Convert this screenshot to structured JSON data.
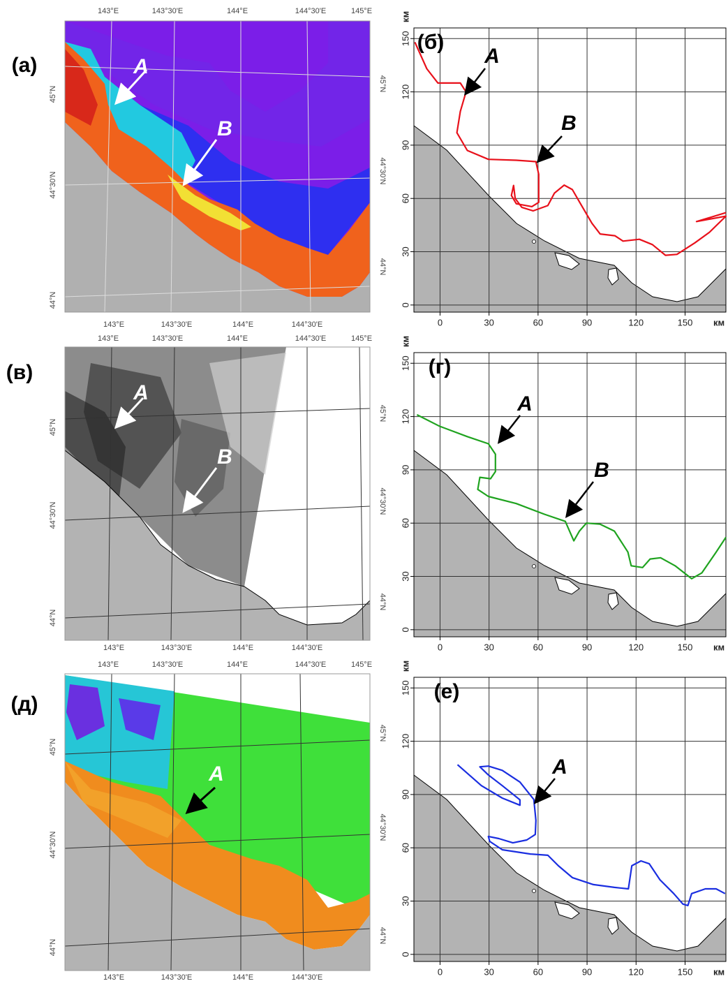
{
  "maps": [
    {
      "label": "(а)",
      "top_lon_labels": [
        "143°E",
        "143°30'E",
        "144°E",
        "144°30'E",
        "145°E"
      ],
      "bottom_lon_labels": [
        "143°E",
        "143°30'E",
        "144°E",
        "144°30'E"
      ],
      "right_lat_labels": [
        "45°N",
        "44°30'N",
        "44°N"
      ],
      "left_lat_labels": [
        "45°N",
        "44°30'N",
        "44°N"
      ],
      "annotations": [
        "A",
        "B"
      ]
    },
    {
      "label": "(в)",
      "top_lon_labels": [
        "143°E",
        "143°30'E",
        "144°E",
        "144°30'E",
        "145°E"
      ],
      "bottom_lon_labels": [
        "143°E",
        "143°30'E",
        "144°E",
        "144°30'E"
      ],
      "right_lat_labels": [
        "45°N",
        "44°30'N",
        "44°N"
      ],
      "left_lat_labels": [
        "45°N",
        "44°30'N",
        "44°N"
      ],
      "annotations": [
        "A",
        "B"
      ]
    },
    {
      "label": "(д)",
      "top_lon_labels": [
        "143°E",
        "143°30'E",
        "144°E",
        "144°30'E",
        "145°E"
      ],
      "bottom_lon_labels": [
        "143°E",
        "143°30'E",
        "144°E",
        "144°30'E"
      ],
      "right_lat_labels": [
        "45°N",
        "44°30'N",
        "44°N"
      ],
      "left_lat_labels": [
        "45°N",
        "44°30'N",
        "44°N"
      ],
      "annotations": [
        "A"
      ]
    }
  ],
  "chart_data": [
    {
      "type": "line",
      "title": "(б)",
      "x_label": "км",
      "y_label": "км",
      "xlim": [
        -16,
        175
      ],
      "ylim": [
        -4,
        156
      ],
      "xticks": [
        0,
        30,
        60,
        90,
        120,
        150
      ],
      "yticks": [
        0,
        30,
        60,
        90,
        120,
        150
      ],
      "grid": true,
      "x": [
        -15.4,
        -8.1,
        -1.3,
        12.4,
        15.9,
        12.4,
        10.3,
        16.7,
        29.6,
        46.7,
        58.7,
        60.4,
        60.4,
        56.2,
        46.7,
        43.7,
        45,
        46,
        50,
        57,
        66,
        70,
        76,
        81,
        86,
        93,
        98,
        107,
        112,
        122,
        130,
        138,
        145,
        156,
        165,
        175,
        157,
        175
      ],
      "series": [
        {
          "color": "#e8111b",
          "values": [
            148,
            133,
            125,
            125,
            120,
            109,
            97,
            87,
            82,
            81.5,
            80.7,
            73.6,
            57.8,
            55.4,
            57,
            61.7,
            67.3,
            60,
            55,
            53,
            56,
            63,
            67.5,
            65,
            57,
            46,
            40,
            39,
            36,
            37,
            34,
            28,
            28.5,
            35,
            41,
            50,
            47,
            52
          ]
        }
      ],
      "annotations": [
        "A",
        "B"
      ]
    },
    {
      "type": "line",
      "title": "(г)",
      "x_label": "км",
      "y_label": "км",
      "xlim": [
        -16,
        175
      ],
      "ylim": [
        -4,
        156
      ],
      "xticks": [
        0,
        30,
        60,
        90,
        120,
        150
      ],
      "yticks": [
        0,
        30,
        60,
        90,
        120,
        150
      ],
      "grid": true,
      "x": [
        -14.1,
        -0.4,
        16.7,
        29.6,
        33.9,
        33.9,
        30.9,
        24.4,
        23.1,
        29.6,
        46.7,
        63.9,
        76.7,
        81.9,
        85.3,
        89.6,
        98,
        106.7,
        115,
        117,
        124,
        128.6,
        135,
        143.9,
        154,
        160.3,
        169,
        175
      ],
      "series": [
        {
          "color": "#1fa31f",
          "values": [
            121,
            114.6,
            108.7,
            104.7,
            98.8,
            89,
            85,
            85.8,
            79,
            75,
            71,
            65,
            61,
            50,
            55.5,
            60,
            59.4,
            55.5,
            43.7,
            36,
            35,
            39.8,
            40.5,
            36,
            28.7,
            32,
            43.7,
            52
          ]
        }
      ],
      "annotations": [
        "A",
        "B"
      ]
    },
    {
      "type": "line",
      "title": "(е)",
      "x_label": "км",
      "y_label": "км",
      "xlim": [
        -16,
        175
      ],
      "ylim": [
        -4,
        156
      ],
      "xticks": [
        0,
        30,
        60,
        90,
        120,
        150
      ],
      "yticks": [
        0,
        30,
        60,
        90,
        120,
        150
      ],
      "grid": true,
      "x": [
        10.7,
        25.3,
        38.1,
        48.9,
        48.9,
        38.1,
        29.6,
        24.4,
        29.6,
        38.1,
        48.9,
        57.4,
        58.7,
        58.3,
        53.1,
        44.6,
        36,
        29.6,
        30.4,
        38.1,
        55.3,
        66,
        72.4,
        81,
        93.9,
        106.7,
        115.3,
        117.4,
        123,
        128.1,
        134.6,
        143.1,
        148.7,
        151.7,
        154,
        162.4,
        169,
        174.5
      ],
      "series": [
        {
          "color": "#1a2ee0",
          "values": [
            106.8,
            95,
            88,
            84,
            87,
            95,
            101,
            105.6,
            106,
            103.6,
            97,
            87.2,
            75.4,
            67.5,
            64.4,
            62.8,
            65.2,
            66.4,
            63.6,
            58.9,
            56.5,
            55.8,
            49.9,
            43.2,
            39.3,
            37.7,
            36.9,
            49.9,
            52.6,
            51,
            42,
            34.2,
            28.3,
            27.5,
            34.2,
            36.9,
            36.9,
            34.2
          ]
        }
      ],
      "annotations": [
        "A"
      ]
    }
  ]
}
